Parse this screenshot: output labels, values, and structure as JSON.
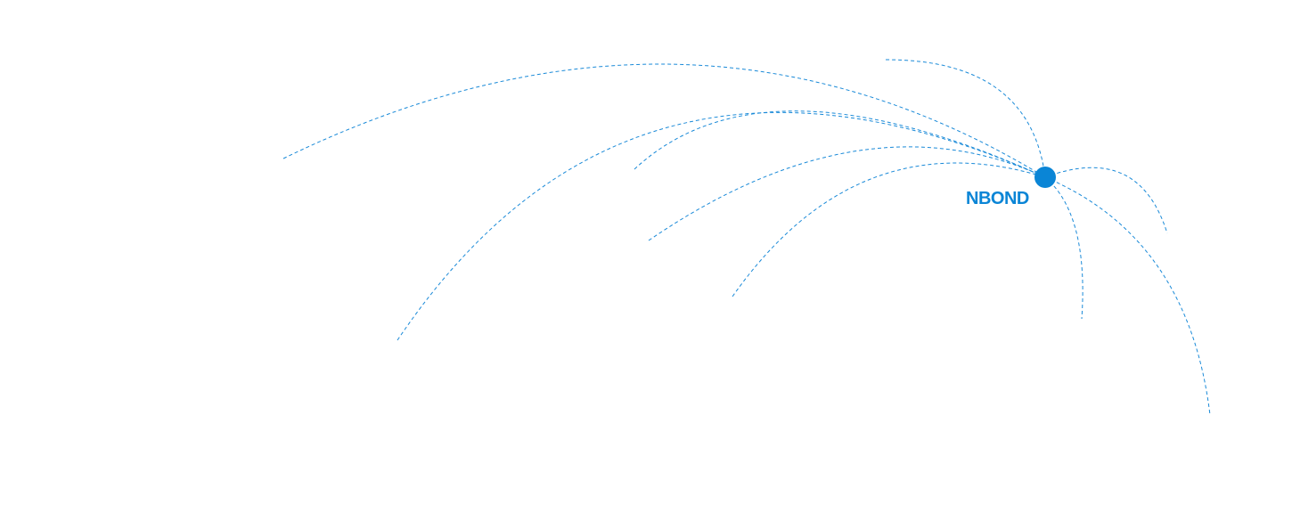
{
  "hub": {
    "label": "NBOND",
    "color": "#0a85d6"
  },
  "arc_color": "#1a8ad8",
  "connections": 9
}
